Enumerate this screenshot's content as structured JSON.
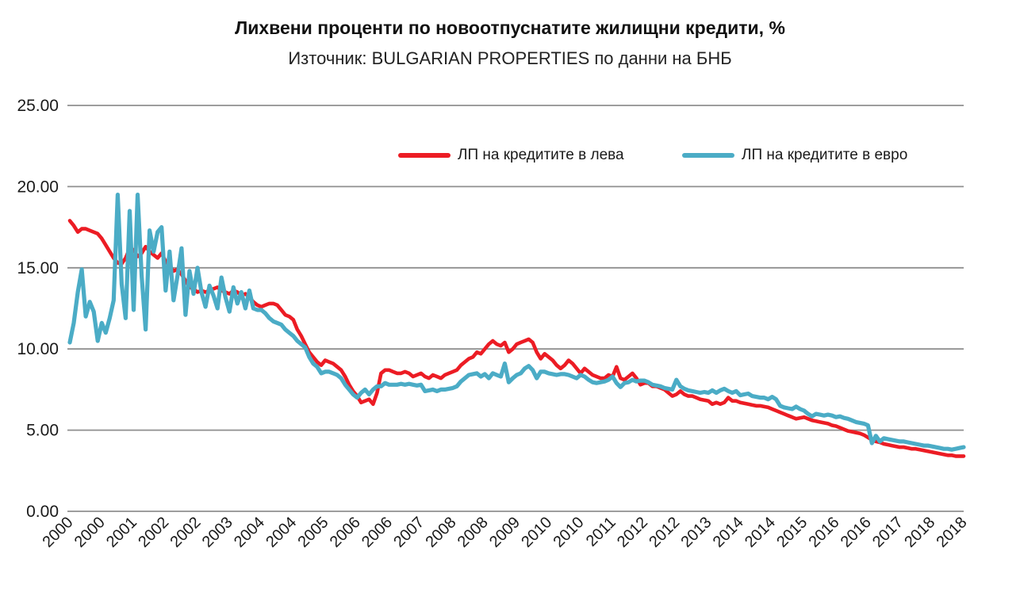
{
  "header": {
    "title": "Лихвени проценти по новоотпуснатите жилищни кредити, %",
    "subtitle": "Източник: BULGARIAN PROPERTIES по данни на БНБ"
  },
  "colors": {
    "leva_line": "#ec1c24",
    "euro_line": "#4bacc6",
    "gridline": "#8f8f8f",
    "axis_text": "#1a1a1a"
  },
  "chart_data": {
    "type": "line",
    "title": "Лихвени проценти по новоотпуснатите жилищни кредити, %",
    "subtitle": "Източник: BULGARIAN PROPERTIES по данни на БНБ",
    "xlabel": "",
    "ylabel": "",
    "ylim": [
      0,
      25
    ],
    "grid": "horizontal",
    "legend_position": "top-center",
    "y_ticks": [
      "0.00",
      "5.00",
      "10.00",
      "15.00",
      "20.00",
      "25.00"
    ],
    "x_unit": "monthly from 2000-01 to 2018-09, tick every 8 months",
    "x_tick_labels": [
      "2000",
      "2000",
      "2001",
      "2002",
      "2002",
      "2003",
      "2004",
      "2004",
      "2005",
      "2006",
      "2006",
      "2007",
      "2008",
      "2008",
      "2009",
      "2010",
      "2010",
      "2011",
      "2012",
      "2012",
      "2013",
      "2014",
      "2014",
      "2015",
      "2016",
      "2016",
      "2017",
      "2018",
      "2018"
    ],
    "x_tick_month_step": 8,
    "series": [
      {
        "name": "ЛП на кредитите в лева",
        "color": "#ec1c24",
        "values": [
          17.9,
          17.6,
          17.2,
          17.4,
          17.4,
          17.3,
          17.2,
          17.1,
          16.8,
          16.4,
          16.0,
          15.6,
          15.3,
          15.25,
          15.6,
          16.2,
          16.1,
          15.7,
          15.9,
          16.3,
          16.0,
          15.8,
          15.6,
          15.9,
          15.4,
          15.1,
          14.8,
          14.9,
          14.6,
          14.2,
          13.8,
          13.7,
          13.5,
          13.6,
          13.5,
          13.6,
          13.7,
          13.8,
          13.6,
          13.5,
          13.4,
          13.6,
          13.5,
          13.3,
          13.4,
          13.2,
          12.9,
          12.7,
          12.6,
          12.7,
          12.8,
          12.8,
          12.7,
          12.4,
          12.1,
          12.0,
          11.8,
          11.2,
          10.8,
          10.3,
          9.8,
          9.5,
          9.2,
          9.0,
          9.3,
          9.2,
          9.1,
          8.9,
          8.7,
          8.3,
          7.8,
          7.4,
          7.1,
          6.7,
          6.8,
          6.9,
          6.6,
          7.3,
          8.5,
          8.7,
          8.7,
          8.6,
          8.5,
          8.5,
          8.6,
          8.5,
          8.3,
          8.4,
          8.5,
          8.3,
          8.2,
          8.4,
          8.3,
          8.2,
          8.4,
          8.5,
          8.6,
          8.7,
          9.0,
          9.2,
          9.4,
          9.5,
          9.8,
          9.7,
          10.0,
          10.3,
          10.5,
          10.3,
          10.2,
          10.4,
          9.8,
          10.0,
          10.3,
          10.4,
          10.5,
          10.6,
          10.4,
          9.8,
          9.4,
          9.7,
          9.5,
          9.3,
          9.0,
          8.8,
          9.0,
          9.3,
          9.1,
          8.8,
          8.5,
          8.8,
          8.6,
          8.4,
          8.3,
          8.2,
          8.2,
          8.4,
          8.3,
          8.9,
          8.2,
          8.1,
          8.3,
          8.5,
          8.2,
          7.8,
          7.9,
          7.9,
          7.7,
          7.7,
          7.6,
          7.5,
          7.3,
          7.1,
          7.2,
          7.4,
          7.2,
          7.1,
          7.1,
          7.0,
          6.9,
          6.85,
          6.8,
          6.6,
          6.7,
          6.6,
          6.7,
          7.0,
          6.8,
          6.8,
          6.7,
          6.65,
          6.6,
          6.55,
          6.5,
          6.5,
          6.45,
          6.4,
          6.3,
          6.2,
          6.1,
          6.0,
          5.9,
          5.8,
          5.7,
          5.75,
          5.8,
          5.7,
          5.6,
          5.55,
          5.5,
          5.45,
          5.4,
          5.3,
          5.25,
          5.15,
          5.05,
          4.95,
          4.9,
          4.85,
          4.8,
          4.7,
          4.55,
          4.4,
          4.3,
          4.25,
          4.15,
          4.1,
          4.05,
          4.0,
          3.95,
          3.95,
          3.9,
          3.85,
          3.85,
          3.8,
          3.75,
          3.7,
          3.65,
          3.6,
          3.55,
          3.5,
          3.45,
          3.45,
          3.4,
          3.4,
          3.4
        ]
      },
      {
        "name": "ЛП на кредитите в евро",
        "color": "#4bacc6",
        "values": [
          10.4,
          11.6,
          13.5,
          14.9,
          12.0,
          12.9,
          12.3,
          10.5,
          11.6,
          11.0,
          11.9,
          13.0,
          19.5,
          14.0,
          11.9,
          18.5,
          12.4,
          19.5,
          14.5,
          11.2,
          17.3,
          16.0,
          17.2,
          17.5,
          13.6,
          16.0,
          13.0,
          14.5,
          16.2,
          12.1,
          14.8,
          13.4,
          15.0,
          13.5,
          12.6,
          13.9,
          13.3,
          12.5,
          14.4,
          13.2,
          12.3,
          13.8,
          12.8,
          13.5,
          12.5,
          13.6,
          12.5,
          12.4,
          12.4,
          12.2,
          11.9,
          11.7,
          11.6,
          11.5,
          11.2,
          11.0,
          10.8,
          10.5,
          10.3,
          10.1,
          9.5,
          9.1,
          8.9,
          8.5,
          8.6,
          8.6,
          8.5,
          8.4,
          8.2,
          7.8,
          7.5,
          7.2,
          7.0,
          7.3,
          7.5,
          7.2,
          7.5,
          7.7,
          7.7,
          7.9,
          7.8,
          7.8,
          7.8,
          7.85,
          7.8,
          7.85,
          7.8,
          7.75,
          7.8,
          7.4,
          7.45,
          7.5,
          7.4,
          7.5,
          7.5,
          7.55,
          7.6,
          7.7,
          8.0,
          8.2,
          8.4,
          8.45,
          8.5,
          8.3,
          8.45,
          8.2,
          8.5,
          8.4,
          8.3,
          9.1,
          7.95,
          8.2,
          8.4,
          8.5,
          8.8,
          8.95,
          8.7,
          8.2,
          8.6,
          8.6,
          8.5,
          8.45,
          8.4,
          8.45,
          8.45,
          8.4,
          8.3,
          8.2,
          8.4,
          8.3,
          8.1,
          7.95,
          7.9,
          7.95,
          8.0,
          8.1,
          8.3,
          7.9,
          7.65,
          7.9,
          7.95,
          8.1,
          8.0,
          8.05,
          8.05,
          7.95,
          7.8,
          7.75,
          7.7,
          7.6,
          7.55,
          7.5,
          8.1,
          7.7,
          7.55,
          7.45,
          7.4,
          7.35,
          7.3,
          7.35,
          7.3,
          7.45,
          7.3,
          7.45,
          7.55,
          7.4,
          7.3,
          7.4,
          7.15,
          7.2,
          7.25,
          7.1,
          7.05,
          7.0,
          7.0,
          6.9,
          7.05,
          6.9,
          6.5,
          6.4,
          6.35,
          6.3,
          6.45,
          6.3,
          6.2,
          6.0,
          5.85,
          6.0,
          5.95,
          5.9,
          5.95,
          5.9,
          5.8,
          5.85,
          5.75,
          5.7,
          5.6,
          5.5,
          5.45,
          5.4,
          5.3,
          4.2,
          4.65,
          4.3,
          4.5,
          4.45,
          4.4,
          4.35,
          4.3,
          4.3,
          4.25,
          4.2,
          4.15,
          4.1,
          4.05,
          4.05,
          4.0,
          3.95,
          3.9,
          3.85,
          3.85,
          3.8,
          3.85,
          3.9,
          3.95
        ]
      }
    ]
  }
}
